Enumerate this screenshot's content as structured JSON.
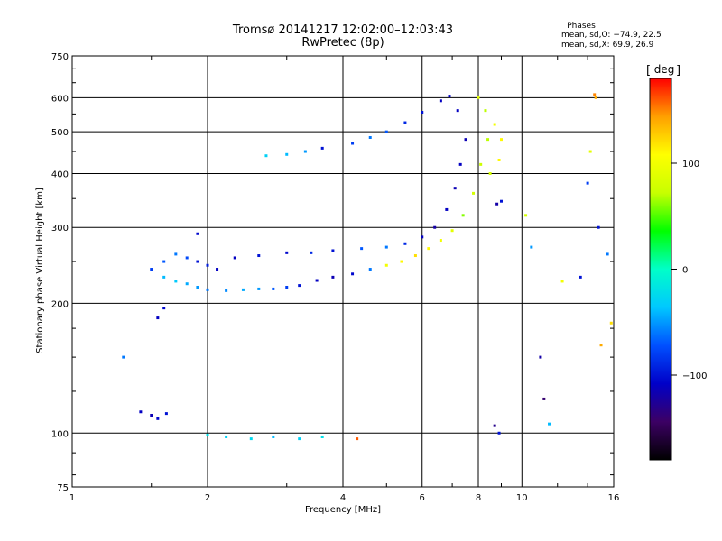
{
  "header": {
    "title_line1": "Tromsø 20141217 12:02:00–12:03:43",
    "title_line2": "RwPretec (8p)"
  },
  "phase_stats": {
    "title": "Phases",
    "o_line": "mean, sd,O: −74.9, 22.5",
    "x_line": "mean, sd,X:  69.9, 26.9"
  },
  "colorbar": {
    "label": "deg",
    "ticks": [
      "100",
      "0",
      "−100"
    ],
    "tick_values": [
      100,
      0,
      -100
    ],
    "range": [
      -180,
      180
    ],
    "colors": [
      "#000000",
      "#3c0064",
      "#0000c8",
      "#0050ff",
      "#00c8ff",
      "#00ffc8",
      "#00ff00",
      "#c8ff00",
      "#ffff00",
      "#ffa000",
      "#ff0000"
    ]
  },
  "chart_data": {
    "type": "scatter",
    "title": "Tromsø 20141217 12:02:00–12:03:43",
    "subtitle": "RwPretec (8p)",
    "xlabel": "Frequency [MHz]",
    "ylabel": "Stationary phase Virtual Height [km]",
    "x_scale": "log",
    "y_scale": "log",
    "xlim": [
      1,
      16
    ],
    "ylim": [
      75,
      750
    ],
    "x_ticks": [
      1,
      2,
      4,
      6,
      8,
      10,
      16
    ],
    "x_tick_labels": [
      "1",
      "2",
      "4",
      "6",
      "8",
      "10",
      "16"
    ],
    "y_ticks": [
      75,
      100,
      200,
      300,
      400,
      500,
      600,
      750
    ],
    "y_tick_labels": [
      "75",
      "100",
      "200",
      "300",
      "400",
      "500",
      "600",
      "750"
    ],
    "grid": true,
    "color_by": "phase (deg)",
    "series": [
      {
        "values": [
          [
            1.42,
            112,
            -110
          ],
          [
            1.5,
            110,
            -115
          ],
          [
            1.55,
            108,
            -105
          ],
          [
            1.62,
            111,
            -100
          ],
          [
            1.3,
            150,
            -60
          ],
          [
            1.55,
            185,
            -110
          ],
          [
            1.6,
            195,
            -105
          ],
          [
            1.5,
            240,
            -80
          ],
          [
            1.6,
            250,
            -70
          ],
          [
            1.7,
            260,
            -60
          ],
          [
            1.8,
            255,
            -75
          ],
          [
            1.9,
            250,
            -100
          ],
          [
            2.0,
            245,
            -95
          ],
          [
            2.1,
            240,
            -110
          ],
          [
            1.9,
            290,
            -105
          ],
          [
            1.6,
            230,
            -40
          ],
          [
            1.7,
            225,
            -35
          ],
          [
            1.8,
            222,
            -45
          ],
          [
            1.9,
            218,
            -50
          ],
          [
            2.0,
            215,
            -60
          ],
          [
            2.2,
            214,
            -55
          ],
          [
            2.4,
            215,
            -45
          ],
          [
            2.6,
            216,
            -50
          ],
          [
            2.8,
            216,
            -70
          ],
          [
            3.0,
            218,
            -80
          ],
          [
            3.2,
            220,
            -100
          ],
          [
            3.5,
            226,
            -110
          ],
          [
            3.8,
            230,
            -115
          ],
          [
            4.2,
            234,
            -105
          ],
          [
            4.6,
            240,
            -60
          ],
          [
            5.0,
            245,
            100
          ],
          [
            5.4,
            250,
            110
          ],
          [
            5.8,
            258,
            120
          ],
          [
            6.2,
            268,
            110
          ],
          [
            6.6,
            280,
            100
          ],
          [
            7.0,
            295,
            90
          ],
          [
            7.4,
            320,
            60
          ],
          [
            7.8,
            360,
            80
          ],
          [
            8.1,
            420,
            75
          ],
          [
            8.4,
            480,
            70
          ],
          [
            2.3,
            255,
            -110
          ],
          [
            2.6,
            258,
            -100
          ],
          [
            3.0,
            262,
            -105
          ],
          [
            3.4,
            262,
            -90
          ],
          [
            3.8,
            265,
            -100
          ],
          [
            4.4,
            268,
            -70
          ],
          [
            5.0,
            270,
            -60
          ],
          [
            5.5,
            275,
            -90
          ],
          [
            6.0,
            285,
            -110
          ],
          [
            6.4,
            300,
            -120
          ],
          [
            6.8,
            330,
            -110
          ],
          [
            7.1,
            370,
            -115
          ],
          [
            7.3,
            420,
            -110
          ],
          [
            7.5,
            480,
            -115
          ],
          [
            7.2,
            560,
            -110
          ],
          [
            2.7,
            440,
            -30
          ],
          [
            3.0,
            443,
            -40
          ],
          [
            3.3,
            450,
            -50
          ],
          [
            3.6,
            458,
            -100
          ],
          [
            4.2,
            470,
            -80
          ],
          [
            4.6,
            485,
            -60
          ],
          [
            5.0,
            500,
            -70
          ],
          [
            5.5,
            525,
            -90
          ],
          [
            6.0,
            555,
            -100
          ],
          [
            6.6,
            590,
            -110
          ],
          [
            6.9,
            605,
            -110
          ],
          [
            8.0,
            600,
            90
          ],
          [
            8.3,
            560,
            70
          ],
          [
            8.7,
            520,
            100
          ],
          [
            9.0,
            480,
            110
          ],
          [
            8.8,
            340,
            -120
          ],
          [
            9.0,
            345,
            -100
          ],
          [
            8.5,
            400,
            80
          ],
          [
            8.9,
            430,
            110
          ],
          [
            2.0,
            99,
            -20
          ],
          [
            2.2,
            98,
            -30
          ],
          [
            2.5,
            97,
            -25
          ],
          [
            2.8,
            98,
            -40
          ],
          [
            3.2,
            97,
            -30
          ],
          [
            3.6,
            98,
            -20
          ],
          [
            4.3,
            97,
            160
          ],
          [
            8.7,
            104,
            -130
          ],
          [
            8.9,
            100,
            -100
          ],
          [
            10.5,
            270,
            -50
          ],
          [
            11.0,
            150,
            -120
          ],
          [
            11.2,
            120,
            -140
          ],
          [
            11.5,
            105,
            -40
          ],
          [
            12.3,
            225,
            100
          ],
          [
            14.5,
            610,
            150
          ],
          [
            14.6,
            600,
            140
          ],
          [
            14.2,
            450,
            90
          ],
          [
            14.8,
            300,
            -100
          ],
          [
            15.5,
            260,
            -60
          ],
          [
            15.8,
            180,
            120
          ],
          [
            15.0,
            160,
            140
          ],
          [
            14.0,
            380,
            -80
          ],
          [
            13.5,
            230,
            -100
          ],
          [
            10.2,
            320,
            80
          ]
        ]
      }
    ]
  }
}
